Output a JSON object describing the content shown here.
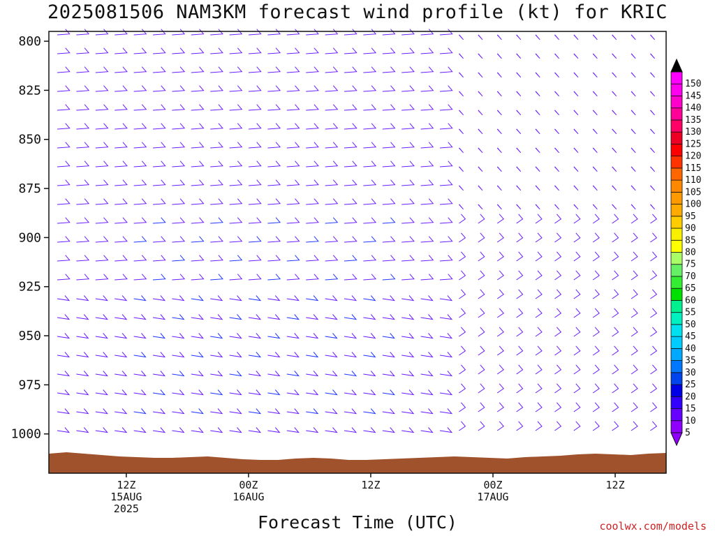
{
  "title": "2025081506 NAM3KM forecast wind profile (kt) for KRIC",
  "xlabel": "Forecast Time (UTC)",
  "credit": "coolwx.com/models",
  "chart_data": {
    "type": "wind-barb-profile",
    "y_axis": {
      "ticks": [
        800,
        825,
        850,
        875,
        900,
        925,
        950,
        975,
        1000
      ],
      "range": [
        795,
        1020
      ],
      "unit": "hPa"
    },
    "x_axis": {
      "range_hours": [
        -1.6,
        59
      ],
      "ticks": [
        {
          "hour": 6,
          "lines": [
            "12Z",
            "15AUG",
            "2025"
          ]
        },
        {
          "hour": 18,
          "lines": [
            "00Z",
            "16AUG"
          ]
        },
        {
          "hour": 30,
          "lines": [
            "12Z"
          ]
        },
        {
          "hour": 42,
          "lines": [
            "00Z",
            "17AUG"
          ]
        },
        {
          "hour": 54,
          "lines": [
            "12Z"
          ]
        }
      ]
    },
    "colorbar": {
      "values": [
        5,
        10,
        15,
        20,
        25,
        30,
        35,
        40,
        45,
        50,
        55,
        60,
        65,
        70,
        75,
        80,
        85,
        90,
        95,
        100,
        105,
        110,
        115,
        120,
        125,
        130,
        135,
        140,
        145,
        150
      ],
      "colors": [
        "#8f00ff",
        "#6600ff",
        "#3300ff",
        "#0000e6",
        "#0044ee",
        "#0077ff",
        "#00a8ff",
        "#00ccff",
        "#00e0ee",
        "#00f0c0",
        "#00f090",
        "#00e000",
        "#33ee33",
        "#66f066",
        "#aaff66",
        "#ffff00",
        "#f8f000",
        "#ffcc00",
        "#ffaa00",
        "#ff9900",
        "#ff8800",
        "#ff6600",
        "#ff3300",
        "#ff0000",
        "#ee0022",
        "#ff0066",
        "#ff0099",
        "#ff00cc",
        "#ff00ee",
        "#ff00ff"
      ]
    },
    "series": []
  }
}
